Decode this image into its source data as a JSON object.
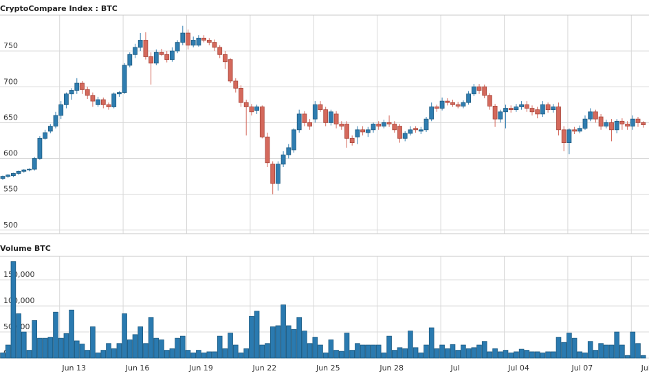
{
  "chart_data": [
    {
      "type": "candlestick",
      "title": "CryptoCompare Index : BTC",
      "up_color": "#2f7db0",
      "down_color": "#d4695c",
      "grid": true,
      "ylim": [
        495,
        800
      ],
      "yticks": [
        500,
        550,
        600,
        650,
        700,
        750
      ],
      "open": [
        572,
        575,
        576,
        579,
        582,
        584,
        585,
        600,
        628,
        638,
        645,
        660,
        675,
        690,
        695,
        705,
        696,
        688,
        675,
        682,
        675,
        672,
        690,
        692,
        730,
        745,
        755,
        765,
        742,
        733,
        748,
        745,
        738,
        750,
        762,
        775,
        758,
        758,
        768,
        765,
        762,
        755,
        745,
        738,
        708,
        698,
        678,
        672,
        667,
        672,
        630,
        592,
        565,
        592,
        605,
        612,
        640,
        662,
        650,
        655,
        675,
        668,
        650,
        662,
        648,
        648,
        628,
        630,
        640,
        636,
        640,
        648,
        645,
        650,
        648,
        645,
        628,
        635,
        642,
        638,
        640,
        655,
        672,
        670,
        680,
        678,
        675,
        673,
        678,
        690,
        700,
        700,
        688,
        673,
        655,
        665,
        670,
        668,
        672,
        675,
        670,
        668,
        662,
        675,
        668,
        672,
        640,
        622,
        640,
        638,
        642,
        655,
        665,
        658,
        645,
        650,
        640,
        652,
        648,
        645,
        655,
        650
      ],
      "high": [
        576,
        578,
        580,
        583,
        585,
        586,
        602,
        631,
        640,
        648,
        665,
        680,
        692,
        698,
        712,
        708,
        700,
        692,
        686,
        685,
        678,
        692,
        694,
        733,
        748,
        760,
        775,
        776,
        748,
        752,
        753,
        750,
        755,
        765,
        785,
        780,
        770,
        772,
        772,
        768,
        766,
        758,
        750,
        740,
        712,
        702,
        682,
        676,
        675,
        674,
        636,
        596,
        596,
        610,
        620,
        642,
        668,
        666,
        655,
        680,
        680,
        672,
        668,
        666,
        652,
        652,
        632,
        645,
        645,
        644,
        650,
        652,
        654,
        660,
        652,
        648,
        638,
        645,
        645,
        644,
        658,
        678,
        675,
        685,
        684,
        682,
        679,
        681,
        694,
        704,
        704,
        703,
        691,
        676,
        668,
        675,
        674,
        676,
        680,
        680,
        674,
        672,
        680,
        678,
        676,
        678,
        645,
        642,
        644,
        646,
        660,
        670,
        668,
        662,
        654,
        655,
        655,
        656,
        652,
        660,
        658,
        652
      ],
      "low": [
        570,
        573,
        574,
        577,
        580,
        582,
        583,
        598,
        626,
        635,
        642,
        655,
        670,
        682,
        690,
        690,
        683,
        672,
        672,
        670,
        668,
        670,
        686,
        690,
        727,
        740,
        750,
        738,
        703,
        730,
        743,
        734,
        735,
        747,
        758,
        752,
        755,
        756,
        762,
        758,
        750,
        740,
        725,
        705,
        692,
        672,
        632,
        660,
        662,
        628,
        588,
        550,
        555,
        588,
        600,
        608,
        636,
        645,
        640,
        650,
        665,
        645,
        646,
        642,
        640,
        615,
        618,
        620,
        632,
        630,
        636,
        640,
        642,
        644,
        636,
        622,
        624,
        632,
        636,
        634,
        637,
        652,
        665,
        667,
        674,
        672,
        670,
        670,
        675,
        687,
        690,
        684,
        668,
        644,
        650,
        642,
        664,
        665,
        668,
        665,
        660,
        656,
        658,
        664,
        664,
        632,
        610,
        606,
        634,
        635,
        640,
        652,
        650,
        640,
        642,
        624,
        635,
        640,
        640,
        640,
        644,
        643
      ],
      "close": [
        575,
        577,
        579,
        582,
        584,
        585,
        600,
        628,
        636,
        645,
        660,
        675,
        690,
        695,
        705,
        696,
        688,
        680,
        682,
        675,
        672,
        690,
        692,
        730,
        745,
        755,
        765,
        742,
        733,
        748,
        745,
        738,
        750,
        762,
        775,
        758,
        765,
        768,
        765,
        762,
        755,
        745,
        735,
        708,
        698,
        678,
        672,
        665,
        672,
        630,
        594,
        565,
        592,
        605,
        615,
        640,
        662,
        650,
        645,
        675,
        668,
        650,
        665,
        648,
        645,
        628,
        622,
        640,
        637,
        640,
        648,
        645,
        650,
        648,
        640,
        628,
        635,
        640,
        640,
        640,
        655,
        672,
        670,
        680,
        678,
        675,
        673,
        678,
        690,
        700,
        695,
        688,
        673,
        655,
        665,
        670,
        668,
        672,
        675,
        670,
        665,
        662,
        675,
        668,
        672,
        640,
        622,
        640,
        638,
        642,
        655,
        665,
        655,
        645,
        650,
        640,
        652,
        648,
        645,
        655,
        650,
        647
      ]
    },
    {
      "type": "bar",
      "title": "Volume BTC",
      "color": "#2a7ab0",
      "grid": true,
      "ylim": [
        0,
        195000
      ],
      "yticks": [
        0,
        {
          "value": 50000,
          "label": "50,000"
        },
        {
          "value": 100000,
          "label": "100,000"
        },
        {
          "value": 150000,
          "label": "150,000"
        }
      ],
      "categories": [
        null,
        null,
        null,
        null,
        null,
        null,
        null,
        null,
        null,
        null,
        null,
        "Jun 13",
        null,
        null,
        null,
        null,
        null,
        null,
        null,
        null,
        null,
        null,
        null,
        "Jun 16",
        null,
        null,
        null,
        null,
        null,
        null,
        null,
        null,
        null,
        null,
        null,
        "Jun 19",
        null,
        null,
        null,
        null,
        null,
        null,
        null,
        null,
        null,
        null,
        null,
        "Jun 22",
        null,
        null,
        null,
        null,
        null,
        null,
        null,
        null,
        null,
        null,
        null,
        "Jun 25",
        null,
        null,
        null,
        null,
        null,
        null,
        null,
        null,
        null,
        null,
        null,
        "Jun 28",
        null,
        null,
        null,
        null,
        null,
        null,
        null,
        null,
        null,
        null,
        null,
        "Jul",
        null,
        null,
        null,
        null,
        null,
        null,
        null,
        null,
        null,
        null,
        null,
        "Jul 04",
        null,
        null,
        null,
        null,
        null,
        null,
        null,
        null,
        null,
        null,
        null,
        "Jul 07",
        null,
        null,
        null,
        null,
        null,
        null,
        null,
        null,
        null,
        null,
        null,
        "Jul",
        null,
        null
      ],
      "values": [
        10000,
        25000,
        185000,
        85000,
        50000,
        15000,
        72000,
        38000,
        38000,
        40000,
        88000,
        38000,
        47000,
        92000,
        33000,
        27000,
        15000,
        60000,
        10000,
        15000,
        28000,
        18000,
        28000,
        85000,
        35000,
        45000,
        60000,
        28000,
        78000,
        38000,
        35000,
        15000,
        18000,
        38000,
        42000,
        15000,
        10000,
        15000,
        10000,
        12000,
        12000,
        42000,
        18000,
        48000,
        25000,
        10000,
        18000,
        80000,
        90000,
        25000,
        28000,
        60000,
        62000,
        102000,
        62000,
        55000,
        78000,
        52000,
        28000,
        40000,
        25000,
        10000,
        35000,
        15000,
        13000,
        48000,
        15000,
        28000,
        25000,
        25000,
        25000,
        25000,
        10000,
        42000,
        15000,
        20000,
        18000,
        52000,
        20000,
        10000,
        25000,
        58000,
        18000,
        25000,
        18000,
        26000,
        15000,
        25000,
        18000,
        20000,
        25000,
        32000,
        12000,
        18000,
        12000,
        15000,
        10000,
        12000,
        17000,
        15000,
        12000,
        12000,
        10000,
        12000,
        12000,
        40000,
        30000,
        48000,
        38000,
        12000,
        10000,
        32000,
        15000,
        28000,
        25000,
        25000,
        50000,
        25000,
        5000,
        50000,
        28000,
        5000
      ]
    }
  ]
}
